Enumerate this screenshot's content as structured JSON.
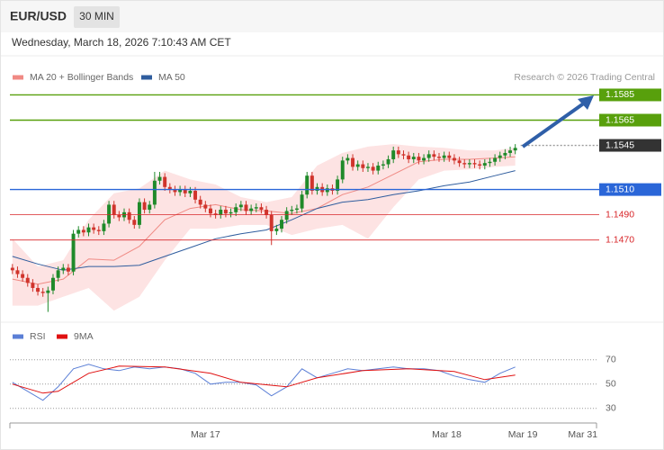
{
  "header": {
    "symbol": "EUR/USD",
    "timeframe": "30 MIN",
    "timestamp": "Wednesday, March 18, 2026 7:10:43 AM CET",
    "credit": "Research © 2026 Trading Central"
  },
  "chart_data": [
    {
      "type": "candlestick",
      "xlim": [
        -0.5,
        115
      ],
      "ylim": [
        1.1407,
        1.1616
      ],
      "up_color": "#1f8a2a",
      "down_color": "#d0342c",
      "x": [
        0,
        1,
        2,
        3,
        4,
        5,
        6,
        7,
        8,
        9,
        10,
        11,
        12,
        13,
        14,
        15,
        16,
        17,
        18,
        19,
        20,
        21,
        22,
        23,
        24,
        25,
        26,
        27,
        28,
        29,
        30,
        31,
        32,
        33,
        34,
        35,
        36,
        37,
        38,
        39,
        40,
        41,
        42,
        43,
        44,
        45,
        46,
        47,
        48,
        49,
        50,
        51,
        52,
        53,
        54,
        55,
        56,
        57,
        58,
        59,
        60,
        61,
        62,
        63,
        64,
        65,
        66,
        67,
        68,
        69,
        70,
        71,
        72,
        73,
        74,
        75,
        76,
        77,
        78,
        79,
        80,
        81,
        82,
        83,
        84,
        85,
        86,
        87,
        88,
        89,
        90,
        91,
        92,
        93,
        94,
        95,
        96,
        97,
        98,
        99
      ],
      "open": [
        1.1448,
        1.1446,
        1.1443,
        1.144,
        1.1436,
        1.1432,
        1.1429,
        1.1428,
        1.143,
        1.144,
        1.1446,
        1.1448,
        1.1445,
        1.1475,
        1.1478,
        1.1476,
        1.148,
        1.1478,
        1.1477,
        1.1483,
        1.1498,
        1.149,
        1.1488,
        1.1492,
        1.1486,
        1.1482,
        1.15,
        1.1494,
        1.1498,
        1.1517,
        1.152,
        1.1512,
        1.151,
        1.1508,
        1.151,
        1.1507,
        1.1509,
        1.1502,
        1.1498,
        1.1495,
        1.1491,
        1.149,
        1.1494,
        1.1491,
        1.1492,
        1.1496,
        1.1498,
        1.1493,
        1.1495,
        1.1496,
        1.1494,
        1.149,
        1.1477,
        1.1479,
        1.1486,
        1.1493,
        1.1494,
        1.1495,
        1.1506,
        1.1521,
        1.1509,
        1.1512,
        1.1508,
        1.1511,
        1.1509,
        1.1518,
        1.1533,
        1.1535,
        1.1528,
        1.153,
        1.1527,
        1.1528,
        1.1525,
        1.1529,
        1.153,
        1.1534,
        1.1541,
        1.1538,
        1.1537,
        1.1534,
        1.1536,
        1.1533,
        1.1535,
        1.1538,
        1.1536,
        1.1535,
        1.1537,
        1.1535,
        1.1533,
        1.1531,
        1.153,
        1.1531,
        1.153,
        1.1529,
        1.1531,
        1.1532,
        1.1535,
        1.1537,
        1.1539,
        1.1541
      ],
      "high": [
        1.1451,
        1.1449,
        1.1446,
        1.1443,
        1.1439,
        1.1435,
        1.1432,
        1.1433,
        1.1443,
        1.1449,
        1.1451,
        1.1451,
        1.1478,
        1.1481,
        1.1481,
        1.1483,
        1.1483,
        1.1481,
        1.1486,
        1.1501,
        1.1501,
        1.1493,
        1.1495,
        1.1495,
        1.1489,
        1.1503,
        1.1503,
        1.1501,
        1.1524,
        1.1524,
        1.1523,
        1.1515,
        1.1513,
        1.1513,
        1.1513,
        1.1512,
        1.1512,
        1.1505,
        1.1501,
        1.1498,
        1.1494,
        1.1497,
        1.1497,
        1.1495,
        1.1499,
        1.1501,
        1.1501,
        1.1498,
        1.1499,
        1.1499,
        1.1497,
        1.1493,
        1.1482,
        1.1489,
        1.1496,
        1.1497,
        1.1498,
        1.1509,
        1.1524,
        1.1524,
        1.1515,
        1.1515,
        1.1514,
        1.1514,
        1.1521,
        1.1536,
        1.1538,
        1.1538,
        1.1533,
        1.1533,
        1.1531,
        1.1531,
        1.1532,
        1.1533,
        1.1537,
        1.1544,
        1.1544,
        1.1541,
        1.154,
        1.1539,
        1.1539,
        1.1538,
        1.1541,
        1.1541,
        1.1539,
        1.154,
        1.154,
        1.1538,
        1.1536,
        1.1534,
        1.1534,
        1.1534,
        1.1533,
        1.1534,
        1.1535,
        1.1538,
        1.154,
        1.1542,
        1.1544,
        1.1546
      ],
      "low": [
        1.1443,
        1.144,
        1.1437,
        1.1433,
        1.1429,
        1.1426,
        1.1425,
        1.1413,
        1.1427,
        1.1437,
        1.1443,
        1.1442,
        1.1442,
        1.1472,
        1.1473,
        1.1473,
        1.1475,
        1.1474,
        1.1474,
        1.148,
        1.1487,
        1.1485,
        1.1485,
        1.1483,
        1.1479,
        1.1479,
        1.1491,
        1.1491,
        1.1495,
        1.1514,
        1.1509,
        1.1507,
        1.1505,
        1.1505,
        1.1504,
        1.1504,
        1.1499,
        1.1495,
        1.1492,
        1.1488,
        1.1487,
        1.1487,
        1.1488,
        1.1488,
        1.1489,
        1.1493,
        1.149,
        1.149,
        1.1492,
        1.1491,
        1.1487,
        1.1466,
        1.1474,
        1.1476,
        1.1483,
        1.149,
        1.1491,
        1.1492,
        1.1503,
        1.1506,
        1.1506,
        1.1505,
        1.1505,
        1.1506,
        1.1506,
        1.1515,
        1.153,
        1.1525,
        1.1525,
        1.1524,
        1.1524,
        1.1522,
        1.1522,
        1.1526,
        1.1527,
        1.1531,
        1.1535,
        1.1534,
        1.1531,
        1.1531,
        1.153,
        1.153,
        1.1532,
        1.1533,
        1.1532,
        1.1532,
        1.1532,
        1.153,
        1.1528,
        1.1527,
        1.1527,
        1.1527,
        1.1526,
        1.1526,
        1.1528,
        1.1529,
        1.1532,
        1.1534,
        1.1536,
        1.1538
      ],
      "close": [
        1.1446,
        1.1443,
        1.144,
        1.1436,
        1.1432,
        1.1429,
        1.1428,
        1.143,
        1.144,
        1.1446,
        1.1448,
        1.1445,
        1.1475,
        1.1478,
        1.1476,
        1.148,
        1.1478,
        1.1477,
        1.1483,
        1.1498,
        1.149,
        1.1488,
        1.1492,
        1.1486,
        1.1482,
        1.15,
        1.1494,
        1.1498,
        1.1517,
        1.152,
        1.1512,
        1.151,
        1.1508,
        1.151,
        1.1507,
        1.1509,
        1.1502,
        1.1498,
        1.1495,
        1.1491,
        1.149,
        1.1494,
        1.1491,
        1.1492,
        1.1496,
        1.1498,
        1.1493,
        1.1495,
        1.1496,
        1.1494,
        1.149,
        1.1477,
        1.1479,
        1.1486,
        1.1493,
        1.1494,
        1.1495,
        1.1506,
        1.1521,
        1.1509,
        1.1512,
        1.1508,
        1.1511,
        1.1509,
        1.1518,
        1.1533,
        1.1535,
        1.1528,
        1.153,
        1.1527,
        1.1528,
        1.1525,
        1.1529,
        1.153,
        1.1534,
        1.1541,
        1.1538,
        1.1537,
        1.1534,
        1.1536,
        1.1533,
        1.1535,
        1.1538,
        1.1536,
        1.1535,
        1.1537,
        1.1535,
        1.1533,
        1.1531,
        1.153,
        1.1531,
        1.153,
        1.1529,
        1.1531,
        1.1532,
        1.1535,
        1.1537,
        1.1539,
        1.1541,
        1.1543
      ],
      "series": [
        {
          "name": "MA 20 + Bollinger Bands",
          "color": "#f08a84",
          "band_color": "#fde3e3",
          "x": [
            0,
            5,
            10,
            15,
            20,
            25,
            30,
            35,
            40,
            45,
            50,
            55,
            60,
            65,
            70,
            75,
            80,
            85,
            90,
            95,
            99
          ],
          "values": [
            1.1439,
            1.1435,
            1.1439,
            1.1455,
            1.1454,
            1.1465,
            1.1486,
            1.1495,
            1.1498,
            1.1494,
            1.1493,
            1.1491,
            1.1495,
            1.1506,
            1.1512,
            1.1522,
            1.1532,
            1.1534,
            1.1534,
            1.1535,
            1.1536
          ],
          "upper": [
            1.1471,
            1.1449,
            1.1454,
            1.1486,
            1.1507,
            1.1511,
            1.1525,
            1.1518,
            1.1514,
            1.1504,
            1.15,
            1.1504,
            1.1529,
            1.1539,
            1.1544,
            1.1546,
            1.1544,
            1.1543,
            1.1541,
            1.1541,
            1.1543
          ],
          "lower": [
            1.1418,
            1.1418,
            1.1425,
            1.1432,
            1.1414,
            1.1425,
            1.1454,
            1.1479,
            1.1479,
            1.1482,
            1.1482,
            1.1474,
            1.1479,
            1.1482,
            1.1471,
            1.1496,
            1.1518,
            1.1525,
            1.1526,
            1.1528,
            1.1529
          ]
        },
        {
          "name": "MA 50",
          "color": "#2f5d9e",
          "x": [
            0,
            5,
            10,
            15,
            20,
            25,
            30,
            35,
            40,
            45,
            50,
            55,
            60,
            65,
            70,
            75,
            80,
            85,
            90,
            95,
            99
          ],
          "values": [
            1.1457,
            1.1451,
            1.1446,
            1.1449,
            1.1449,
            1.145,
            1.1457,
            1.1464,
            1.1471,
            1.1475,
            1.1478,
            1.1486,
            1.1495,
            1.15,
            1.1502,
            1.1506,
            1.1509,
            1.1513,
            1.1516,
            1.1521,
            1.1525
          ]
        }
      ],
      "levels": [
        {
          "value": 1.1585,
          "color": "#58a00c",
          "line": "solid",
          "box": true
        },
        {
          "value": 1.1565,
          "color": "#58a00c",
          "line": "solid",
          "box": true
        },
        {
          "value": 1.1545,
          "color": "#333333",
          "line": "dotted",
          "box": true
        },
        {
          "value": 1.151,
          "label": "1.1510",
          "color": "#2a66d8",
          "line": "solid",
          "box": true
        },
        {
          "value": 1.149,
          "label": "1.1490",
          "color": "#d8262a",
          "line": "solid",
          "box": false
        },
        {
          "value": 1.147,
          "label": "1.1470",
          "color": "#d8262a",
          "line": "solid",
          "box": false
        }
      ]
    },
    {
      "type": "line",
      "xlim": [
        -0.5,
        115
      ],
      "ylim": [
        18,
        98
      ],
      "yticks": [
        70,
        50,
        30
      ],
      "grid": true,
      "xticks": [
        {
          "value": 38,
          "label": "Mar 17"
        },
        {
          "value": 85.5,
          "label": "Mar 18"
        },
        {
          "value": 100.5,
          "label": "Mar 19"
        },
        {
          "value": 112.3,
          "label": "Mar 31"
        }
      ],
      "series": [
        {
          "name": "RSI",
          "color": "#5b7fd6",
          "x": [
            0,
            3,
            6,
            9,
            12,
            15,
            18,
            21,
            24,
            27,
            30,
            33,
            36,
            39,
            42,
            45,
            48,
            51,
            54,
            57,
            60,
            63,
            66,
            69,
            72,
            75,
            78,
            81,
            84,
            87,
            90,
            93,
            96,
            99
          ],
          "values": [
            51.5,
            44.1,
            36.7,
            47.8,
            62.6,
            66.3,
            62.6,
            61.1,
            64.1,
            62.6,
            64.1,
            62.6,
            58.9,
            50,
            51.5,
            51.5,
            49.3,
            40.4,
            47.8,
            62.6,
            55.2,
            58.9,
            62.6,
            61.1,
            62.6,
            64.1,
            62.6,
            62.6,
            61.1,
            56.7,
            53.7,
            51.5,
            58.9,
            64.1
          ]
        },
        {
          "name": "9MA",
          "color": "#e01010",
          "x": [
            0,
            6,
            9,
            15,
            21,
            30,
            39,
            45,
            54,
            60,
            69,
            78,
            87,
            93,
            99
          ],
          "values": [
            50,
            42.6,
            44.1,
            58.9,
            64.8,
            64.1,
            58.9,
            51.5,
            47.8,
            55.2,
            61.1,
            62.6,
            60.4,
            53.7,
            57.4
          ]
        }
      ]
    }
  ]
}
